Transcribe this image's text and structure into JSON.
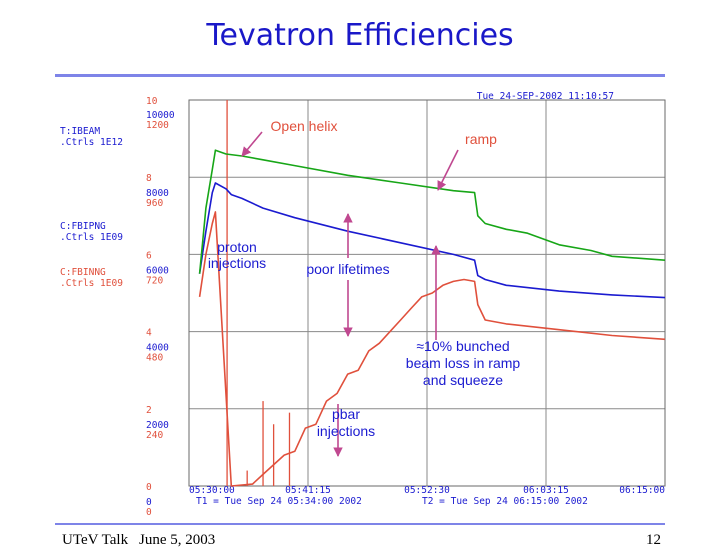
{
  "slide": {
    "title": "Tevatron Efficiencies",
    "footer_left": "UTeV Talk",
    "footer_date": "June 5, 2003",
    "page_number": "12"
  },
  "chart_data": {
    "type": "line",
    "title": "Tevatron Efficiencies",
    "timestamp": "Tue 24-SEP-2002 11:10:57",
    "channels": [
      {
        "name": "T:IBEAM",
        "units": ".Ctrls 1E12",
        "color": "#1b1bd0"
      },
      {
        "name": "C:FBIPNG",
        "units": ".Ctrls 1E09",
        "color": "#17a617"
      },
      {
        "name": "C:FBINNG",
        "units": ".Ctrls 1E09",
        "color": "#e0503c"
      }
    ],
    "y_axis_ticks": [
      {
        "value": 10,
        "label": "10",
        "s1": "",
        "s2": ""
      },
      {
        "value": 8,
        "label": "8",
        "s1": "8000",
        "s2": "960"
      },
      {
        "value": 6,
        "label": "6",
        "s1": "6000",
        "s2": "720"
      },
      {
        "value": 4,
        "label": "4",
        "s1": "4000",
        "s2": "480"
      },
      {
        "value": 2,
        "label": "2",
        "s1": "2000",
        "s2": "240"
      },
      {
        "value": 0,
        "label": "0",
        "s1": "0",
        "s2": "0"
      }
    ],
    "top_scale": {
      "s1": "10000",
      "s2": "1200"
    },
    "ylim": [
      0,
      10
    ],
    "x_axis_ticks": [
      "05:30:00",
      "05:41:15",
      "05:52:30",
      "06:03:15",
      "06:15:00"
    ],
    "x_cursor_labels": {
      "t1": "T1 = Tue Sep 24 05:34:00 2002",
      "t2": "T2 = Tue Sep 24 06:15:00 2002"
    },
    "xlim": [
      0,
      45
    ],
    "series": [
      {
        "name": "T:IBEAM",
        "color": "#1b1bd0",
        "points": [
          [
            1,
            5.5
          ],
          [
            1.6,
            6.6
          ],
          [
            2.2,
            7.6
          ],
          [
            2.5,
            7.85
          ],
          [
            3.5,
            7.7
          ],
          [
            4,
            7.55
          ],
          [
            5,
            7.45
          ],
          [
            7,
            7.2
          ],
          [
            10,
            6.95
          ],
          [
            15,
            6.6
          ],
          [
            20,
            6.3
          ],
          [
            25,
            6.0
          ],
          [
            27,
            5.85
          ],
          [
            27.3,
            5.45
          ],
          [
            28,
            5.35
          ],
          [
            30,
            5.2
          ],
          [
            35,
            5.05
          ],
          [
            40,
            4.95
          ],
          [
            45,
            4.88
          ]
        ]
      },
      {
        "name": "C:FBIPNG",
        "color": "#17a617",
        "points": [
          [
            1,
            5.5
          ],
          [
            1.6,
            7.2
          ],
          [
            2.2,
            8.2
          ],
          [
            2.5,
            8.7
          ],
          [
            3.5,
            8.6
          ],
          [
            5,
            8.55
          ],
          [
            7,
            8.45
          ],
          [
            10,
            8.3
          ],
          [
            15,
            8.05
          ],
          [
            20,
            7.85
          ],
          [
            25,
            7.65
          ],
          [
            27,
            7.6
          ],
          [
            27.3,
            7.0
          ],
          [
            28,
            6.8
          ],
          [
            30,
            6.65
          ],
          [
            32,
            6.55
          ],
          [
            35,
            6.25
          ],
          [
            38,
            6.1
          ],
          [
            40,
            5.95
          ],
          [
            45,
            5.85
          ]
        ]
      },
      {
        "name": "C:FBINNG",
        "color": "#e0503c",
        "points": [
          [
            1,
            4.9
          ],
          [
            1.6,
            6.0
          ],
          [
            2.2,
            6.8
          ],
          [
            2.5,
            7.1
          ],
          [
            4,
            0
          ],
          [
            6,
            0.05
          ],
          [
            7,
            0.3
          ],
          [
            9,
            0.8
          ],
          [
            10,
            0.9
          ],
          [
            11,
            1.5
          ],
          [
            12,
            1.6
          ],
          [
            13,
            2.2
          ],
          [
            14,
            2.4
          ],
          [
            15,
            2.9
          ],
          [
            16,
            3.0
          ],
          [
            17,
            3.5
          ],
          [
            18,
            3.7
          ],
          [
            19,
            4.0
          ],
          [
            20,
            4.3
          ],
          [
            21,
            4.6
          ],
          [
            22,
            4.9
          ],
          [
            23,
            5.0
          ],
          [
            24,
            5.2
          ],
          [
            25,
            5.3
          ],
          [
            26,
            5.35
          ],
          [
            27,
            5.3
          ],
          [
            27.3,
            4.7
          ],
          [
            28,
            4.3
          ],
          [
            30,
            4.2
          ],
          [
            35,
            4.05
          ],
          [
            40,
            3.9
          ],
          [
            45,
            3.8
          ]
        ]
      }
    ],
    "spikes": [
      {
        "x": 3.6,
        "y": 10.0
      },
      {
        "x": 5.5,
        "y": 0.4
      },
      {
        "x": 7.0,
        "y": 2.2
      },
      {
        "x": 8.0,
        "y": 1.6
      },
      {
        "x": 9.5,
        "y": 1.9
      }
    ],
    "annotations": {
      "open_helix": "Open helix",
      "ramp": "ramp",
      "proton_line1": "proton",
      "proton_line2": "injections",
      "poor_lifetimes": "poor lifetimes",
      "loss_line1": "≈10% bunched",
      "loss_line2": "beam loss in ramp",
      "loss_line3": "and squeeze",
      "pbar_line1": "pbar",
      "pbar_line2": "injections"
    }
  }
}
